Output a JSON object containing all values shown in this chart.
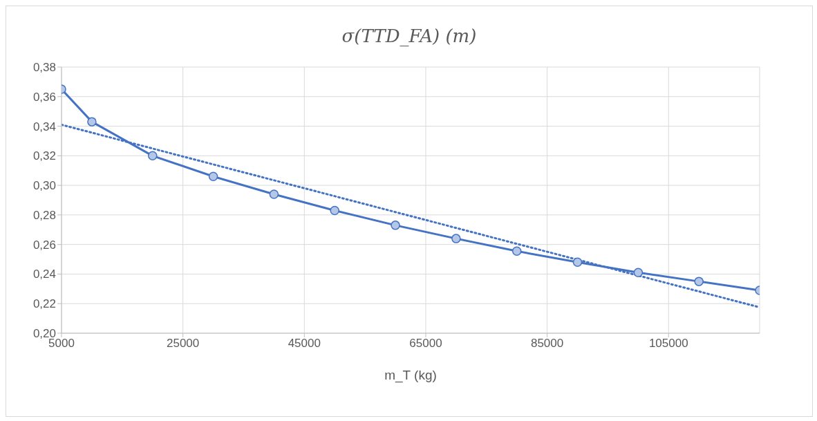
{
  "chart_data": {
    "type": "line",
    "title": "σ(TTD_FA) (m)",
    "xlabel": "m_T (kg)",
    "xlim": [
      5000,
      120000
    ],
    "xticks": [
      5000,
      25000,
      45000,
      65000,
      85000,
      105000
    ],
    "ylim": [
      0.2,
      0.38
    ],
    "yticks": [
      {
        "value": 0.2,
        "label": "0,20"
      },
      {
        "value": 0.22,
        "label": "0,22"
      },
      {
        "value": 0.24,
        "label": "0,24"
      },
      {
        "value": 0.26,
        "label": "0,26"
      },
      {
        "value": 0.28,
        "label": "0,28"
      },
      {
        "value": 0.3,
        "label": "0,30"
      },
      {
        "value": 0.32,
        "label": "0,32"
      },
      {
        "value": 0.34,
        "label": "0,34"
      },
      {
        "value": 0.36,
        "label": "0,36"
      },
      {
        "value": 0.38,
        "label": "0,38"
      }
    ],
    "grid": true,
    "series": [
      {
        "color": "#4472c4",
        "marker": "circle",
        "line_style": "solid",
        "x": [
          5000,
          10000,
          20000,
          30000,
          40000,
          50000,
          60000,
          70000,
          80000,
          90000,
          100000,
          110000,
          120000
        ],
        "values": [
          0.365,
          0.343,
          0.32,
          0.306,
          0.294,
          0.283,
          0.273,
          0.264,
          0.2555,
          0.248,
          0.241,
          0.235,
          0.229
        ]
      },
      {
        "color": "#4472c4",
        "marker": "none",
        "line_style": "dotted",
        "x": [
          5000,
          120000
        ],
        "values": [
          0.341,
          0.2175
        ]
      }
    ]
  }
}
